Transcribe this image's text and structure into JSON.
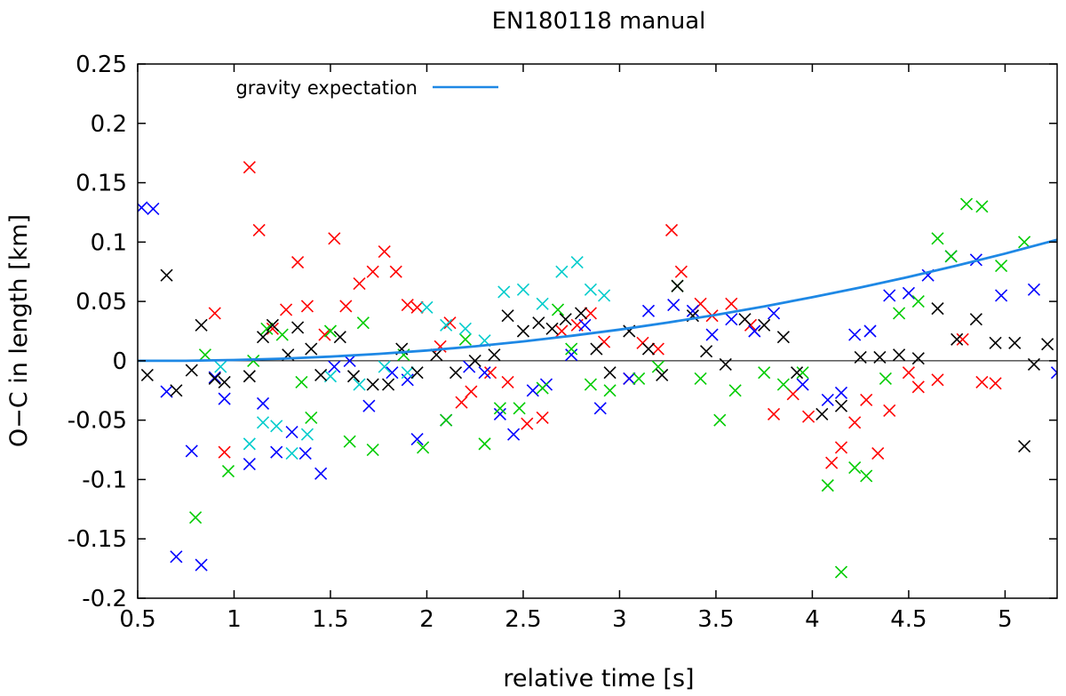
{
  "chart_data": {
    "type": "scatter",
    "title": "EN180118 manual",
    "xlabel": "relative time [s]",
    "ylabel": "O−C in length [km]",
    "xlim": [
      0.5,
      5.27
    ],
    "ylim": [
      -0.2,
      0.25
    ],
    "xticks": [
      0.5,
      1,
      1.5,
      2,
      2.5,
      3,
      3.5,
      4,
      4.5,
      5
    ],
    "xtick_labels": [
      "0.5",
      "1",
      "1.5",
      "2",
      "2.5",
      "3",
      "3.5",
      "4",
      "4.5",
      "5"
    ],
    "yticks": [
      0.25,
      0.2,
      0.15,
      0.1,
      0.05,
      0,
      -0.05,
      -0.1,
      -0.15,
      -0.2
    ],
    "ytick_labels": [
      "0.25",
      "0.2",
      "0.15",
      "0.1",
      "0.05",
      "0",
      "-0.05",
      "-0.1",
      "-0.15",
      "-0.2"
    ],
    "legend": {
      "position": "top-left",
      "label": "gravity expectation"
    },
    "curve": {
      "name": "gravity expectation",
      "color": "#1e88e5",
      "x": [
        0.5,
        0.75,
        1.0,
        1.25,
        1.5,
        1.75,
        2.0,
        2.25,
        2.5,
        2.75,
        3.0,
        3.25,
        3.5,
        3.75,
        4.0,
        4.25,
        4.5,
        4.75,
        5.0,
        5.27
      ],
      "y": [
        0.0,
        0.0,
        0.0007,
        0.0018,
        0.0035,
        0.0058,
        0.0087,
        0.0122,
        0.0163,
        0.021,
        0.0263,
        0.0322,
        0.0387,
        0.0458,
        0.0535,
        0.0618,
        0.0707,
        0.0802,
        0.0903,
        0.102
      ]
    },
    "series": [
      {
        "name": "red",
        "color": "#ff0000",
        "x": [
          0.9,
          0.95,
          1.08,
          1.13,
          1.2,
          1.27,
          1.33,
          1.38,
          1.47,
          1.52,
          1.58,
          1.65,
          1.72,
          1.78,
          1.84,
          1.9,
          1.95,
          2.07,
          2.12,
          2.18,
          2.23,
          2.33,
          2.42,
          2.52,
          2.6,
          2.7,
          2.78,
          2.85,
          2.92,
          3.05,
          3.12,
          3.2,
          3.27,
          3.32,
          3.42,
          3.48,
          3.58,
          3.68,
          3.8,
          3.9,
          3.98,
          4.1,
          4.15,
          4.22,
          4.28,
          4.34,
          4.4,
          4.5,
          4.55,
          4.65,
          4.78,
          4.88,
          4.95
        ],
        "y": [
          0.04,
          -0.077,
          0.163,
          0.11,
          0.027,
          0.043,
          0.083,
          0.046,
          0.022,
          0.103,
          0.046,
          0.065,
          0.075,
          0.092,
          0.075,
          0.047,
          0.045,
          0.012,
          0.032,
          -0.035,
          -0.026,
          -0.01,
          -0.018,
          -0.053,
          -0.048,
          0.025,
          0.03,
          0.04,
          0.016,
          -0.015,
          0.015,
          0.01,
          0.11,
          0.075,
          0.048,
          0.038,
          0.048,
          0.03,
          -0.045,
          -0.028,
          -0.047,
          -0.086,
          -0.073,
          -0.052,
          -0.033,
          -0.078,
          -0.042,
          -0.01,
          -0.022,
          -0.016,
          0.018,
          -0.018,
          -0.019
        ]
      },
      {
        "name": "blue",
        "color": "#0000ff",
        "x": [
          0.52,
          0.58,
          0.65,
          0.7,
          0.78,
          0.83,
          0.9,
          0.95,
          1.08,
          1.15,
          1.22,
          1.3,
          1.37,
          1.45,
          1.52,
          1.6,
          1.7,
          1.82,
          1.9,
          1.95,
          2.1,
          2.22,
          2.3,
          2.38,
          2.45,
          2.55,
          2.62,
          2.75,
          2.82,
          2.9,
          3.05,
          3.15,
          3.28,
          3.38,
          3.48,
          3.58,
          3.7,
          3.8,
          3.95,
          4.08,
          4.15,
          4.22,
          4.3,
          4.4,
          4.5,
          4.6,
          4.72,
          4.85,
          4.98,
          5.15,
          5.27
        ],
        "y": [
          0.129,
          0.128,
          -0.026,
          -0.165,
          -0.076,
          -0.172,
          -0.014,
          -0.032,
          -0.087,
          -0.036,
          -0.077,
          -0.06,
          -0.078,
          -0.095,
          -0.005,
          0.0,
          -0.038,
          -0.01,
          -0.016,
          -0.066,
          -0.05,
          -0.005,
          -0.01,
          -0.045,
          -0.062,
          -0.025,
          -0.02,
          0.005,
          0.03,
          -0.04,
          -0.015,
          0.042,
          0.047,
          0.042,
          0.022,
          0.035,
          0.025,
          0.04,
          -0.02,
          -0.033,
          -0.027,
          0.022,
          0.025,
          0.055,
          0.057,
          0.072,
          0.088,
          0.085,
          0.055,
          0.06,
          -0.01
        ]
      },
      {
        "name": "green",
        "color": "#00cc00",
        "x": [
          0.8,
          0.85,
          0.97,
          1.1,
          1.17,
          1.25,
          1.35,
          1.4,
          1.5,
          1.6,
          1.67,
          1.72,
          1.88,
          1.98,
          2.1,
          2.2,
          2.3,
          2.38,
          2.48,
          2.6,
          2.68,
          2.75,
          2.85,
          2.95,
          3.1,
          3.2,
          3.3,
          3.42,
          3.52,
          3.6,
          3.75,
          3.85,
          3.95,
          4.08,
          4.15,
          4.22,
          4.28,
          4.38,
          4.45,
          4.55,
          4.65,
          4.72,
          4.8,
          4.88,
          4.98,
          5.1
        ],
        "y": [
          -0.132,
          0.005,
          -0.093,
          0.0,
          0.027,
          0.022,
          -0.018,
          -0.048,
          0.025,
          -0.068,
          0.032,
          -0.075,
          0.005,
          -0.073,
          -0.05,
          0.018,
          -0.07,
          -0.04,
          -0.04,
          -0.023,
          0.043,
          0.01,
          -0.02,
          -0.025,
          -0.015,
          -0.005,
          0.063,
          -0.015,
          -0.05,
          -0.025,
          -0.01,
          -0.02,
          -0.01,
          -0.105,
          -0.178,
          -0.09,
          -0.097,
          -0.015,
          0.04,
          0.05,
          0.103,
          0.088,
          0.132,
          0.13,
          0.08,
          0.1
        ]
      },
      {
        "name": "cyan",
        "color": "#00cccc",
        "x": [
          0.93,
          1.08,
          1.15,
          1.22,
          1.3,
          1.38,
          1.5,
          1.65,
          1.78,
          1.9,
          2.0,
          2.1,
          2.2,
          2.3,
          2.4,
          2.5,
          2.6,
          2.7,
          2.78,
          2.85,
          2.92
        ],
        "y": [
          -0.005,
          -0.07,
          -0.052,
          -0.055,
          -0.078,
          -0.062,
          -0.013,
          -0.02,
          -0.005,
          -0.01,
          0.045,
          0.03,
          0.027,
          0.017,
          0.058,
          0.06,
          0.048,
          0.075,
          0.083,
          0.06,
          0.055
        ]
      },
      {
        "name": "black",
        "color": "#000000",
        "x": [
          0.55,
          0.65,
          0.7,
          0.78,
          0.83,
          0.9,
          0.95,
          1.08,
          1.15,
          1.2,
          1.28,
          1.33,
          1.4,
          1.45,
          1.55,
          1.62,
          1.72,
          1.8,
          1.87,
          1.95,
          2.05,
          2.15,
          2.25,
          2.35,
          2.42,
          2.5,
          2.58,
          2.65,
          2.72,
          2.8,
          2.88,
          2.95,
          3.05,
          3.15,
          3.22,
          3.3,
          3.38,
          3.45,
          3.55,
          3.65,
          3.75,
          3.85,
          3.92,
          4.05,
          4.15,
          4.25,
          4.35,
          4.45,
          4.55,
          4.65,
          4.75,
          4.85,
          4.95,
          5.05,
          5.1,
          5.15,
          5.22
        ],
        "y": [
          -0.012,
          0.072,
          -0.025,
          -0.008,
          0.03,
          -0.015,
          -0.018,
          -0.013,
          0.02,
          0.03,
          0.005,
          0.028,
          0.01,
          -0.012,
          0.02,
          -0.013,
          -0.02,
          -0.02,
          0.01,
          -0.01,
          0.005,
          -0.01,
          0.0,
          0.005,
          0.038,
          0.025,
          0.032,
          0.027,
          0.035,
          0.04,
          0.01,
          -0.01,
          0.025,
          0.01,
          -0.012,
          0.063,
          0.038,
          0.008,
          -0.003,
          0.035,
          0.03,
          0.02,
          -0.01,
          -0.045,
          -0.038,
          0.003,
          0.003,
          0.005,
          0.002,
          0.044,
          0.018,
          0.035,
          0.015,
          0.015,
          -0.072,
          -0.003,
          0.014
        ]
      }
    ]
  }
}
